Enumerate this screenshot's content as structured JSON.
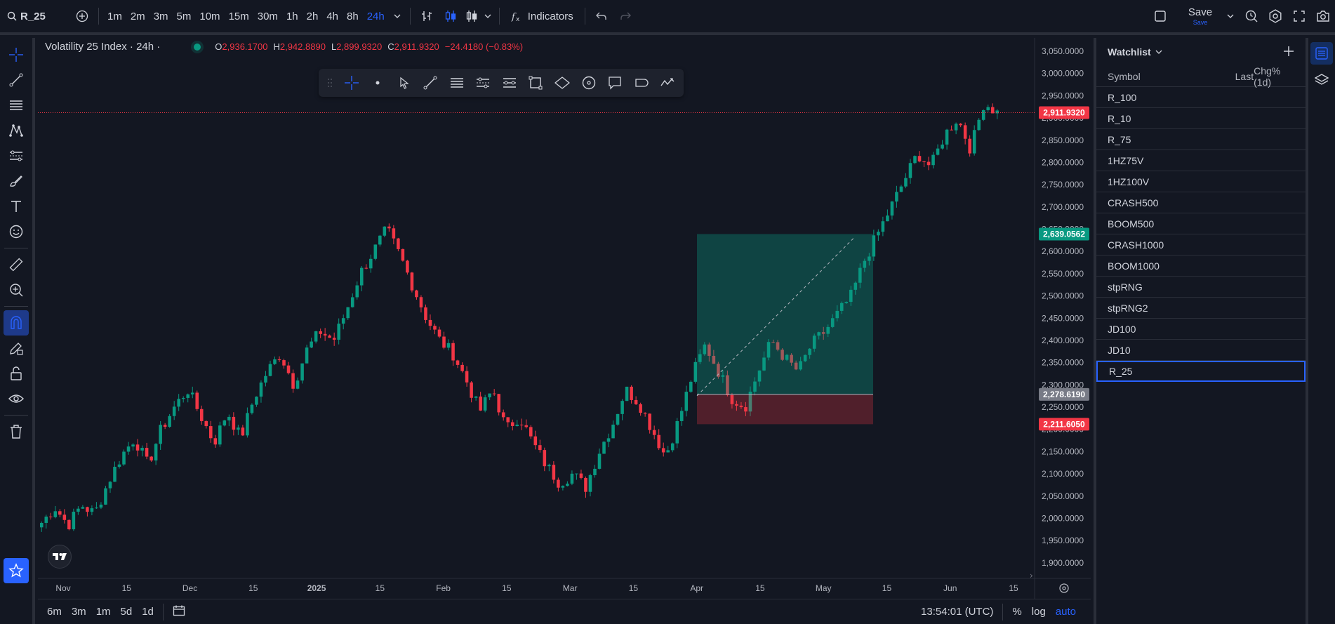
{
  "topbar": {
    "symbol": "R_25",
    "timeframes": [
      "1m",
      "2m",
      "3m",
      "5m",
      "10m",
      "15m",
      "30m",
      "1h",
      "2h",
      "4h",
      "8h",
      "24h"
    ],
    "active_timeframe": "24h",
    "indicators_label": "Indicators",
    "save_label": "Save",
    "save_sub": "Save"
  },
  "legend": {
    "title": "Volatility 25 Index · 24h ·",
    "o_label": "O",
    "o_value": "2,936.1700",
    "h_label": "H",
    "h_value": "2,942.8890",
    "l_label": "L",
    "l_value": "2,899.9320",
    "c_label": "C",
    "c_value": "2,911.9320",
    "change": "−24.4180 (−0.83%)"
  },
  "chart_data": {
    "type": "candlestick",
    "y_ticks": [
      "3,050.0000",
      "3,000.0000",
      "2,950.0000",
      "2,900.0000",
      "2,850.0000",
      "2,800.0000",
      "2,750.0000",
      "2,700.0000",
      "2,650.0000",
      "2,600.0000",
      "2,550.0000",
      "2,500.0000",
      "2,450.0000",
      "2,400.0000",
      "2,350.0000",
      "2,300.0000",
      "2,250.0000",
      "2,200.0000",
      "2,150.0000",
      "2,100.0000",
      "2,050.0000",
      "2,000.0000",
      "1,950.0000",
      "1,900.0000"
    ],
    "ylim": [
      1865,
      3080
    ],
    "x_ticks": [
      "Nov",
      "15",
      "Dec",
      "15",
      "2025",
      "15",
      "Feb",
      "15",
      "Mar",
      "15",
      "Apr",
      "15",
      "May",
      "15",
      "Jun",
      "15"
    ],
    "price_labels": {
      "last": "2,911.9320",
      "target": "2,639.0562",
      "entry": "2,278.6190",
      "stop": "2,211.6050"
    },
    "position": {
      "entry": 2278.619,
      "target": 2639.0562,
      "stop": 2211.605
    },
    "close_path": [
      1990,
      2025,
      1985,
      2030,
      2010,
      2080,
      2140,
      2180,
      2120,
      2200,
      2250,
      2290,
      2230,
      2170,
      2240,
      2180,
      2270,
      2330,
      2370,
      2300,
      2380,
      2420,
      2400,
      2470,
      2550,
      2600,
      2650,
      2590,
      2520,
      2450,
      2400,
      2370,
      2310,
      2240,
      2290,
      2200,
      2230,
      2170,
      2120,
      2080,
      2100,
      2070,
      2150,
      2210,
      2290,
      2260,
      2200,
      2140,
      2220,
      2320,
      2390,
      2330,
      2270,
      2250,
      2330,
      2400,
      2360,
      2330,
      2390,
      2420,
      2460,
      2500,
      2580,
      2640,
      2700,
      2760,
      2820,
      2790,
      2860,
      2900,
      2830,
      2935,
      2912
    ]
  },
  "bottombar": {
    "ranges": [
      "6m",
      "3m",
      "1m",
      "5d",
      "1d"
    ],
    "time": "13:54:01 (UTC)",
    "percent": "%",
    "log": "log",
    "auto": "auto"
  },
  "watchlist": {
    "title": "Watchlist",
    "col_symbol": "Symbol",
    "col_last": "Last",
    "col_chg": "Chg%(1d)",
    "items": [
      "R_100",
      "R_10",
      "R_75",
      "1HZ75V",
      "1HZ100V",
      "CRASH500",
      "BOOM500",
      "CRASH1000",
      "BOOM1000",
      "stpRNG",
      "stpRNG2",
      "JD100",
      "JD10",
      "R_25"
    ],
    "selected": "R_25"
  },
  "colors": {
    "up": "#089981",
    "down": "#f23645",
    "accent": "#2962ff",
    "bg": "#131722"
  }
}
